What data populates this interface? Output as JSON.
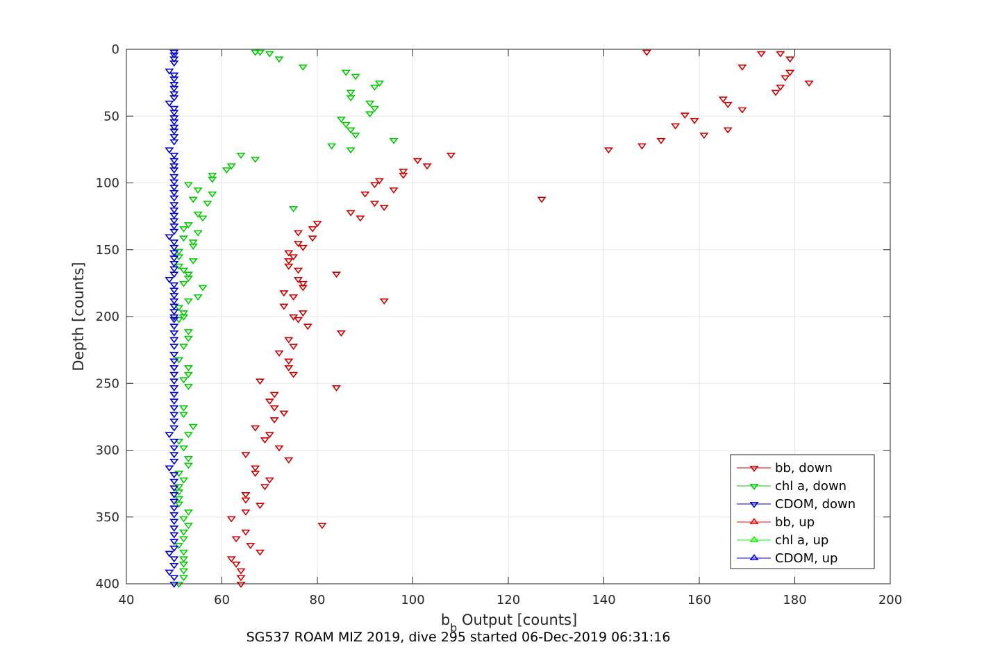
{
  "chart_data": {
    "type": "scatter",
    "xlabel": "b",
    "xlabel_sub": "b",
    "xlabel_rest": " Output [counts]",
    "ylabel": "Depth [counts]",
    "caption": "SG537 ROAM MIZ 2019, dive 295 started 06-Dec-2019 06:31:16",
    "xlim": [
      40,
      200
    ],
    "ylim": [
      0,
      400
    ],
    "y_reversed": true,
    "grid": true,
    "legend_position": "bottom-right",
    "xticks": [
      "40",
      "60",
      "80",
      "100",
      "120",
      "140",
      "160",
      "180",
      "200"
    ],
    "yticks": [
      "0",
      "50",
      "100",
      "150",
      "200",
      "250",
      "300",
      "350",
      "400"
    ],
    "legend": [
      {
        "name": "bb, down",
        "color": "#cc0000",
        "marker": "triangle-down"
      },
      {
        "name": "chl a, down",
        "color": "#00cc00",
        "marker": "triangle-down"
      },
      {
        "name": "CDOM, down",
        "color": "#0000cc",
        "marker": "triangle-down"
      },
      {
        "name": "bb, up",
        "color": "#ff0000",
        "marker": "triangle-up"
      },
      {
        "name": "chl a, up",
        "color": "#00ff00",
        "marker": "triangle-up"
      },
      {
        "name": "CDOM, up",
        "color": "#0000ff",
        "marker": "triangle-up"
      }
    ],
    "series": [
      {
        "name": "bb, down",
        "color": "#cc0000",
        "marker": "triangle-down",
        "points": [
          [
            149,
            2
          ],
          [
            173,
            3
          ],
          [
            177,
            3
          ],
          [
            179,
            7
          ],
          [
            169,
            13
          ],
          [
            179,
            17
          ],
          [
            178,
            21
          ],
          [
            183,
            25
          ],
          [
            177,
            28
          ],
          [
            176,
            32
          ],
          [
            165,
            37
          ],
          [
            166,
            41
          ],
          [
            169,
            45
          ],
          [
            157,
            49
          ],
          [
            159,
            53
          ],
          [
            155,
            57
          ],
          [
            166,
            60
          ],
          [
            161,
            64
          ],
          [
            152,
            68
          ],
          [
            148,
            72
          ],
          [
            141,
            75
          ],
          [
            108,
            79
          ],
          [
            101,
            83
          ],
          [
            103,
            87
          ],
          [
            98,
            91
          ],
          [
            98,
            94
          ],
          [
            93,
            98
          ],
          [
            92,
            101
          ],
          [
            96,
            105
          ],
          [
            90,
            108
          ],
          [
            127,
            112
          ],
          [
            92,
            115
          ],
          [
            94,
            118
          ],
          [
            87,
            122
          ],
          [
            89,
            126
          ],
          [
            80,
            130
          ],
          [
            79,
            134
          ],
          [
            76,
            137
          ],
          [
            79,
            141
          ],
          [
            76,
            145
          ],
          [
            77,
            148
          ],
          [
            74,
            152
          ],
          [
            75,
            155
          ],
          [
            74,
            158
          ],
          [
            74,
            162
          ],
          [
            76,
            165
          ],
          [
            84,
            168
          ],
          [
            76,
            172
          ],
          [
            77,
            175
          ],
          [
            77,
            178
          ],
          [
            73,
            182
          ],
          [
            75,
            185
          ],
          [
            94,
            188
          ],
          [
            73,
            192
          ],
          [
            77,
            197
          ],
          [
            75,
            200
          ],
          [
            76,
            202
          ],
          [
            78,
            207
          ],
          [
            85,
            212
          ],
          [
            74,
            217
          ],
          [
            75,
            222
          ],
          [
            72,
            227
          ],
          [
            74,
            233
          ],
          [
            74,
            238
          ],
          [
            75,
            243
          ],
          [
            68,
            248
          ],
          [
            84,
            253
          ],
          [
            71,
            258
          ],
          [
            70,
            263
          ],
          [
            71,
            268
          ],
          [
            73,
            272
          ],
          [
            71,
            277
          ],
          [
            67,
            283
          ],
          [
            70,
            288
          ],
          [
            69,
            292
          ],
          [
            72,
            298
          ],
          [
            65,
            303
          ],
          [
            74,
            307
          ],
          [
            67,
            313
          ],
          [
            67,
            317
          ],
          [
            70,
            322
          ],
          [
            69,
            327
          ],
          [
            65,
            333
          ],
          [
            65,
            337
          ],
          [
            68,
            341
          ],
          [
            65,
            346
          ],
          [
            62,
            351
          ],
          [
            81,
            356
          ],
          [
            65,
            361
          ],
          [
            63,
            366
          ],
          [
            66,
            371
          ],
          [
            68,
            376
          ],
          [
            62,
            381
          ],
          [
            63,
            385
          ],
          [
            64,
            390
          ],
          [
            64,
            395
          ],
          [
            64,
            400
          ]
        ]
      },
      {
        "name": "chl a, down",
        "color": "#00cc00",
        "marker": "triangle-down",
        "points": [
          [
            67,
            2
          ],
          [
            68,
            2
          ],
          [
            70,
            3
          ],
          [
            72,
            7
          ],
          [
            77,
            13
          ],
          [
            86,
            17
          ],
          [
            88,
            20
          ],
          [
            93,
            25
          ],
          [
            92,
            28
          ],
          [
            87,
            32
          ],
          [
            87,
            36
          ],
          [
            91,
            40
          ],
          [
            92,
            44
          ],
          [
            91,
            48
          ],
          [
            85,
            52
          ],
          [
            86,
            56
          ],
          [
            87,
            60
          ],
          [
            88,
            64
          ],
          [
            96,
            68
          ],
          [
            83,
            72
          ],
          [
            87,
            75
          ],
          [
            64,
            79
          ],
          [
            67,
            82
          ],
          [
            62,
            87
          ],
          [
            61,
            90
          ],
          [
            58,
            94
          ],
          [
            58,
            97
          ],
          [
            53,
            101
          ],
          [
            55,
            105
          ],
          [
            58,
            108
          ],
          [
            54,
            112
          ],
          [
            57,
            115
          ],
          [
            75,
            119
          ],
          [
            55,
            123
          ],
          [
            56,
            126
          ],
          [
            53,
            131
          ],
          [
            52,
            134
          ],
          [
            55,
            137
          ],
          [
            52,
            141
          ],
          [
            54,
            144
          ],
          [
            54,
            147
          ],
          [
            51,
            151
          ],
          [
            51,
            155
          ],
          [
            54,
            158
          ],
          [
            51,
            162
          ],
          [
            52,
            165
          ],
          [
            53,
            168
          ],
          [
            53,
            171
          ],
          [
            52,
            175
          ],
          [
            56,
            178
          ],
          [
            55,
            185
          ],
          [
            53,
            188
          ],
          [
            51,
            193
          ],
          [
            52,
            197
          ],
          [
            52,
            200
          ],
          [
            51,
            202
          ],
          [
            53,
            211
          ],
          [
            53,
            216
          ],
          [
            52,
            222
          ],
          [
            51,
            232
          ],
          [
            53,
            238
          ],
          [
            53,
            243
          ],
          [
            52,
            247
          ],
          [
            53,
            252
          ],
          [
            52,
            268
          ],
          [
            52,
            273
          ],
          [
            54,
            282
          ],
          [
            53,
            288
          ],
          [
            51,
            293
          ],
          [
            52,
            298
          ],
          [
            53,
            306
          ],
          [
            53,
            311
          ],
          [
            51,
            317
          ],
          [
            52,
            322
          ],
          [
            51,
            327
          ],
          [
            51,
            331
          ],
          [
            51,
            336
          ],
          [
            51,
            340
          ],
          [
            53,
            346
          ],
          [
            52,
            351
          ],
          [
            53,
            356
          ],
          [
            52,
            361
          ],
          [
            52,
            366
          ],
          [
            51,
            371
          ],
          [
            52,
            376
          ],
          [
            52,
            381
          ],
          [
            52,
            385
          ],
          [
            52,
            390
          ],
          [
            52,
            395
          ],
          [
            51,
            400
          ]
        ]
      },
      {
        "name": "CDOM, down",
        "color": "#0000cc",
        "marker": "triangle-down",
        "points": [
          [
            50,
            2
          ],
          [
            50,
            4
          ],
          [
            50,
            7
          ],
          [
            50,
            10
          ],
          [
            49,
            16
          ],
          [
            50,
            19
          ],
          [
            50,
            22
          ],
          [
            50,
            26
          ],
          [
            50,
            29
          ],
          [
            50,
            33
          ],
          [
            50,
            36
          ],
          [
            49,
            40
          ],
          [
            50,
            44
          ],
          [
            50,
            47
          ],
          [
            50,
            51
          ],
          [
            50,
            54
          ],
          [
            50,
            58
          ],
          [
            50,
            61
          ],
          [
            50,
            65
          ],
          [
            50,
            69
          ],
          [
            49,
            75
          ],
          [
            50,
            79
          ],
          [
            50,
            83
          ],
          [
            50,
            87
          ],
          [
            50,
            90
          ],
          [
            50,
            95
          ],
          [
            50,
            99
          ],
          [
            50,
            103
          ],
          [
            50,
            107
          ],
          [
            50,
            111
          ],
          [
            50,
            116
          ],
          [
            50,
            120
          ],
          [
            50,
            124
          ],
          [
            50,
            128
          ],
          [
            50,
            132
          ],
          [
            50,
            136
          ],
          [
            49,
            140
          ],
          [
            50,
            144
          ],
          [
            50,
            148
          ],
          [
            50,
            152
          ],
          [
            50,
            156
          ],
          [
            50,
            160
          ],
          [
            50,
            164
          ],
          [
            50,
            168
          ],
          [
            49,
            172
          ],
          [
            50,
            176
          ],
          [
            50,
            180
          ],
          [
            50,
            184
          ],
          [
            50,
            188
          ],
          [
            50,
            192
          ],
          [
            50,
            196
          ],
          [
            50,
            200
          ],
          [
            50,
            202
          ],
          [
            50,
            207
          ],
          [
            50,
            212
          ],
          [
            50,
            217
          ],
          [
            50,
            222
          ],
          [
            50,
            228
          ],
          [
            50,
            233
          ],
          [
            50,
            238
          ],
          [
            50,
            243
          ],
          [
            50,
            248
          ],
          [
            50,
            253
          ],
          [
            50,
            258
          ],
          [
            50,
            263
          ],
          [
            50,
            268
          ],
          [
            50,
            273
          ],
          [
            50,
            278
          ],
          [
            50,
            283
          ],
          [
            49,
            288
          ],
          [
            50,
            293
          ],
          [
            50,
            298
          ],
          [
            50,
            303
          ],
          [
            50,
            308
          ],
          [
            49,
            313
          ],
          [
            50,
            318
          ],
          [
            50,
            323
          ],
          [
            50,
            328
          ],
          [
            50,
            333
          ],
          [
            50,
            338
          ],
          [
            50,
            343
          ],
          [
            50,
            348
          ],
          [
            50,
            353
          ],
          [
            50,
            358
          ],
          [
            50,
            363
          ],
          [
            50,
            368
          ],
          [
            50,
            373
          ],
          [
            49,
            377
          ],
          [
            50,
            381
          ],
          [
            50,
            386
          ],
          [
            49,
            391
          ],
          [
            50,
            395
          ],
          [
            50,
            400
          ]
        ]
      }
    ]
  }
}
